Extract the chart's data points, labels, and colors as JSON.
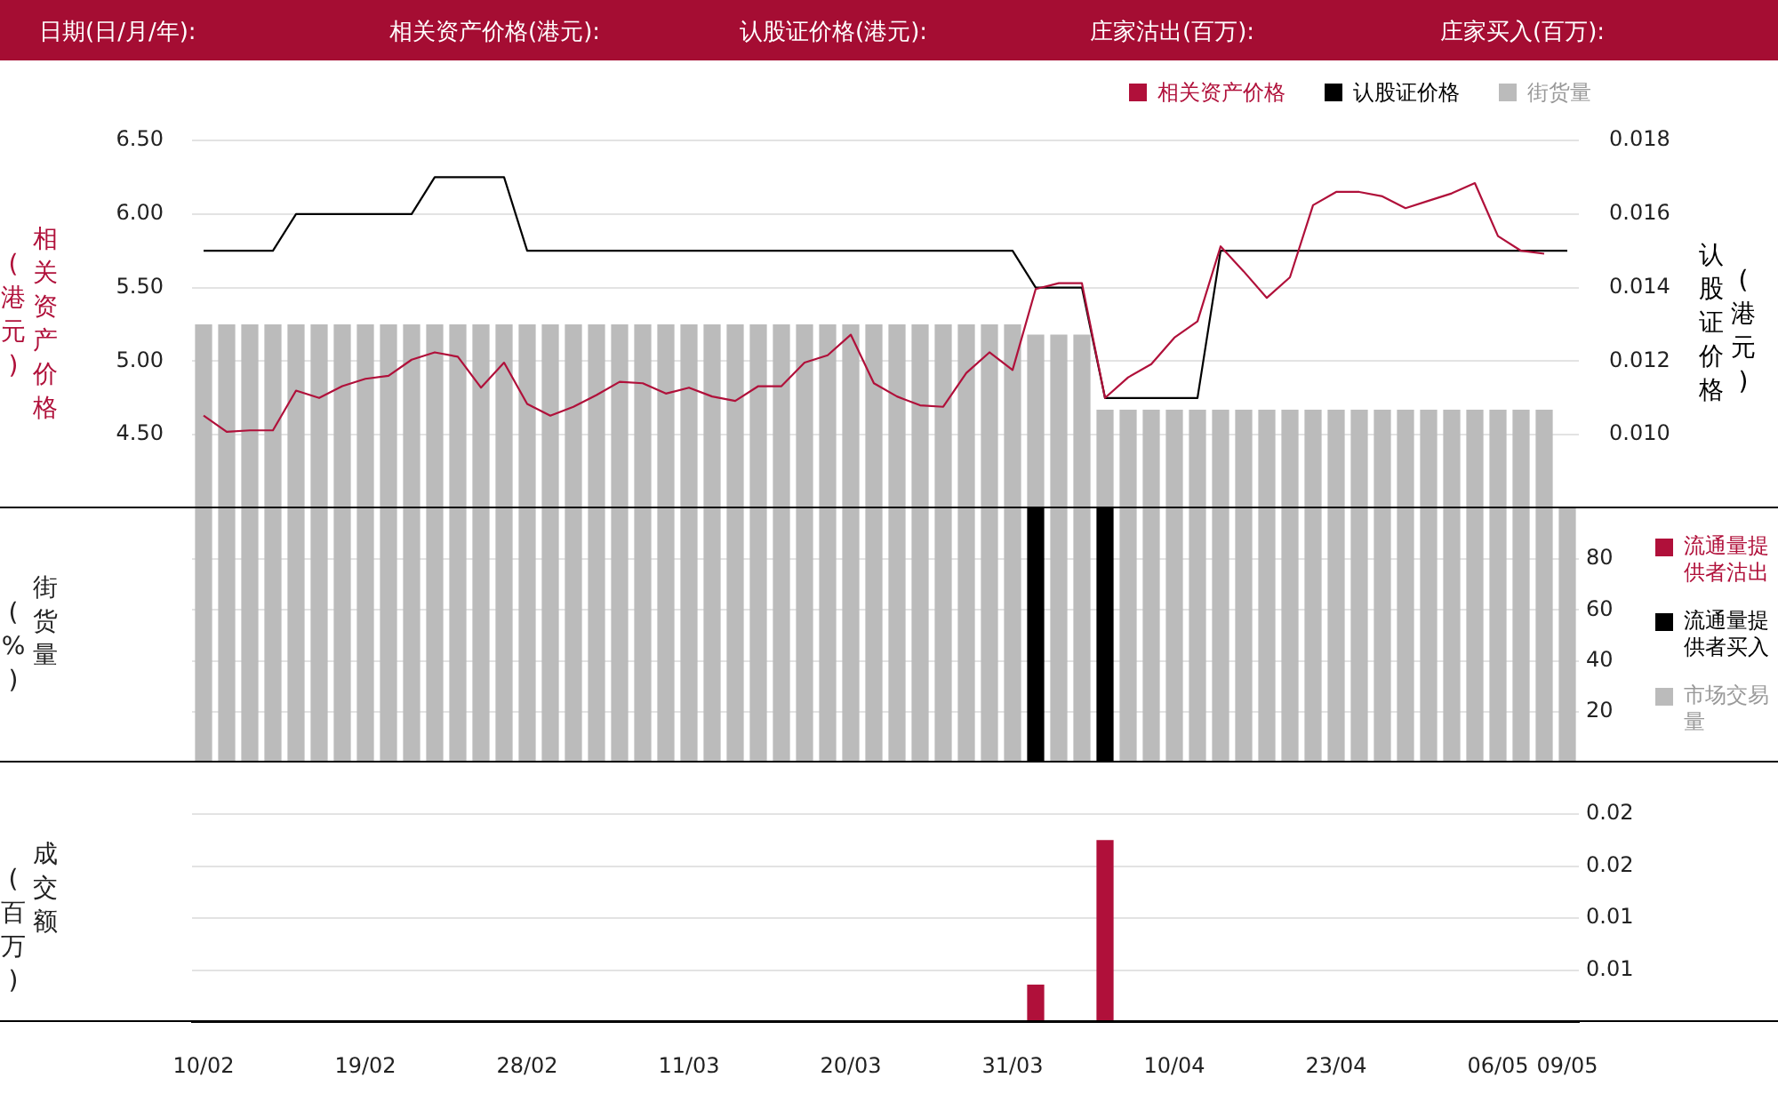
{
  "chart_data": [
    {
      "type": "line",
      "annotations": [
        "日期(日/月/年):",
        "相关资产价格(港元):",
        "认股证价格(港元):",
        "庄家沽出(百万):",
        "庄家买入(百万):"
      ],
      "categories": [
        null,
        null,
        null,
        null,
        null,
        null,
        null,
        null,
        null,
        null,
        null,
        null,
        null,
        null,
        null,
        null,
        null,
        null,
        null,
        null,
        null,
        null,
        null,
        null,
        null,
        null,
        null,
        null,
        null,
        null,
        null,
        null,
        null,
        null,
        null,
        null,
        null,
        null,
        null,
        null,
        null,
        null,
        null,
        null,
        null,
        null,
        null,
        null,
        null,
        null,
        null,
        null,
        null,
        null,
        null,
        null,
        null,
        null,
        null,
        null
      ],
      "series": [
        {
          "name": "相关资产价格",
          "color": "#b0103a",
          "values": [
            4.63,
            4.52,
            4.53,
            4.53,
            4.8,
            4.75,
            4.83,
            4.88,
            4.9,
            5.01,
            5.06,
            5.03,
            4.82,
            4.99,
            4.71,
            4.63,
            4.69,
            4.77,
            4.86,
            4.85,
            4.78,
            4.82,
            4.76,
            4.73,
            4.83,
            4.83,
            4.99,
            5.04,
            5.18,
            4.85,
            4.76,
            4.7,
            4.69,
            4.92,
            5.06,
            4.94,
            5.49,
            5.53,
            5.53,
            4.75,
            4.89,
            4.98,
            5.16,
            5.27,
            5.78,
            5.61,
            5.43,
            5.57,
            6.06,
            6.15,
            6.15,
            6.12,
            6.04,
            6.09,
            6.14,
            6.21,
            5.85,
            5.75,
            5.73,
            null
          ]
        },
        {
          "name": "认股证价格",
          "color": "#000000",
          "axis": "y2",
          "values": [
            0.015,
            0.015,
            0.015,
            0.015,
            0.016,
            0.016,
            0.016,
            0.016,
            0.016,
            0.016,
            0.017,
            0.017,
            0.017,
            0.017,
            0.015,
            0.015,
            0.015,
            0.015,
            0.015,
            0.015,
            0.015,
            0.015,
            0.015,
            0.015,
            0.015,
            0.015,
            0.015,
            0.015,
            0.015,
            0.015,
            0.015,
            0.015,
            0.015,
            0.015,
            0.015,
            0.015,
            0.014,
            0.014,
            0.014,
            0.011,
            0.011,
            0.011,
            0.011,
            0.011,
            0.015,
            0.015,
            0.015,
            0.015,
            0.015,
            0.015,
            0.015,
            0.015,
            0.015,
            0.015,
            0.015,
            0.015,
            0.015,
            0.015,
            0.015,
            0.015
          ]
        },
        {
          "name": "街货量",
          "type": "bar",
          "color": "#bbbbbb",
          "values": [
            5.25,
            5.25,
            5.25,
            5.25,
            5.25,
            5.25,
            5.25,
            5.25,
            5.25,
            5.25,
            5.25,
            5.25,
            5.25,
            5.25,
            5.25,
            5.25,
            5.25,
            5.25,
            5.25,
            5.25,
            5.25,
            5.25,
            5.25,
            5.25,
            5.25,
            5.25,
            5.25,
            5.25,
            5.25,
            5.25,
            5.25,
            5.25,
            5.25,
            5.25,
            5.25,
            5.25,
            5.18,
            5.18,
            5.18,
            4.67,
            4.67,
            4.67,
            4.67,
            4.67,
            4.67,
            4.67,
            4.67,
            4.67,
            4.67,
            4.67,
            4.67,
            4.67,
            4.67,
            4.67,
            4.67,
            4.67,
            4.67,
            4.67,
            4.67,
            null
          ]
        }
      ],
      "ylabel": "相关资产价格(港元)",
      "y2label": "认股证价格(港元)",
      "ylim": [
        4.0,
        6.5
      ],
      "yticks": [
        {
          "value": 4.5,
          "label": "4.50"
        },
        {
          "value": 5.0,
          "label": "5.00"
        },
        {
          "value": 5.5,
          "label": "5.50"
        },
        {
          "value": 6.0,
          "label": "6.00"
        },
        {
          "value": 6.5,
          "label": "6.50"
        }
      ],
      "y2lim": [
        0.008,
        0.018
      ],
      "y2ticks": [
        {
          "value": 0.01,
          "label": "0.010"
        },
        {
          "value": 0.012,
          "label": "0.012"
        },
        {
          "value": 0.014,
          "label": "0.014"
        },
        {
          "value": 0.016,
          "label": "0.016"
        },
        {
          "value": 0.018,
          "label": "0.018"
        }
      ],
      "legend": "top right",
      "grid": "y",
      "tick_labels": "y",
      "marker": "none"
    },
    {
      "type": "bar",
      "categories": [
        null,
        null,
        null,
        null,
        null,
        null,
        null,
        null,
        null,
        null,
        null,
        null,
        null,
        null,
        null,
        null,
        null,
        null,
        null,
        null,
        null,
        null,
        null,
        null,
        null,
        null,
        null,
        null,
        null,
        null,
        null,
        null,
        null,
        null,
        null,
        null,
        null,
        null,
        null,
        null,
        null,
        null,
        null,
        null,
        null,
        null,
        null,
        null,
        null,
        null,
        null,
        null,
        null,
        null,
        null,
        null,
        null,
        null,
        null,
        null
      ],
      "series": [
        {
          "name": "流通量提供者沽出",
          "color": "#b0103a",
          "values": [
            null,
            null,
            null,
            null,
            null,
            null,
            null,
            null,
            null,
            null,
            null,
            null,
            null,
            null,
            null,
            null,
            null,
            null,
            null,
            null,
            null,
            null,
            null,
            null,
            null,
            null,
            null,
            null,
            null,
            null,
            null,
            null,
            null,
            null,
            null,
            null,
            null,
            null,
            null,
            null,
            null,
            null,
            null,
            null,
            null,
            null,
            null,
            null,
            null,
            null,
            null,
            null,
            null,
            null,
            null,
            null,
            null,
            null,
            null,
            null
          ]
        },
        {
          "name": "流通量提供者买入",
          "color": "#000000",
          "values": [
            null,
            null,
            null,
            null,
            null,
            null,
            null,
            null,
            null,
            null,
            null,
            null,
            null,
            null,
            null,
            null,
            null,
            null,
            null,
            null,
            null,
            null,
            null,
            null,
            null,
            null,
            null,
            null,
            null,
            null,
            null,
            null,
            null,
            null,
            null,
            null,
            100,
            null,
            null,
            100,
            null,
            null,
            null,
            null,
            null,
            null,
            null,
            null,
            null,
            null,
            null,
            null,
            null,
            null,
            null,
            null,
            null,
            null,
            null,
            null
          ]
        },
        {
          "name": "市场交易量",
          "color": "#bbbbbb",
          "values": [
            100,
            100,
            100,
            100,
            100,
            100,
            100,
            100,
            100,
            100,
            100,
            100,
            100,
            100,
            100,
            100,
            100,
            100,
            100,
            100,
            100,
            100,
            100,
            100,
            100,
            100,
            100,
            100,
            100,
            100,
            100,
            100,
            100,
            100,
            100,
            100,
            null,
            100,
            100,
            null,
            100,
            100,
            100,
            100,
            100,
            100,
            100,
            100,
            100,
            100,
            100,
            100,
            100,
            100,
            100,
            100,
            100,
            100,
            100,
            100
          ]
        }
      ],
      "ylabel": "街货量(%)",
      "ylim": [
        0,
        100
      ],
      "yticks": [
        20,
        40,
        60,
        80
      ],
      "legend": "right",
      "grid": "y",
      "tick_labels": "y"
    },
    {
      "type": "bar",
      "categories": [
        "10/02",
        null,
        null,
        null,
        null,
        null,
        null,
        "19/02",
        null,
        null,
        null,
        null,
        null,
        null,
        "28/02",
        null,
        null,
        null,
        null,
        null,
        null,
        "11/03",
        null,
        null,
        null,
        null,
        null,
        null,
        "20/03",
        null,
        null,
        null,
        null,
        null,
        null,
        "31/03",
        null,
        null,
        null,
        null,
        null,
        null,
        "10/04",
        null,
        null,
        null,
        null,
        null,
        null,
        "23/04",
        null,
        null,
        null,
        null,
        null,
        null,
        "06/05",
        null,
        null,
        "09/05"
      ],
      "series": [
        {
          "color": "#b0103a",
          "values": [
            null,
            null,
            null,
            null,
            null,
            null,
            null,
            null,
            null,
            null,
            null,
            null,
            null,
            null,
            null,
            null,
            null,
            null,
            null,
            null,
            null,
            null,
            null,
            null,
            null,
            null,
            null,
            null,
            null,
            null,
            null,
            null,
            null,
            null,
            null,
            null,
            0.0036,
            null,
            null,
            0.0175,
            null,
            null,
            null,
            null,
            null,
            null,
            null,
            null,
            null,
            null,
            null,
            null,
            null,
            null,
            null,
            null,
            null,
            null,
            null,
            null
          ]
        }
      ],
      "ylabel": "成交额(百万)",
      "ylim": [
        0,
        0.02
      ],
      "yticks": [
        {
          "value": 0.005,
          "label": "0.01"
        },
        {
          "value": 0.01,
          "label": "0.01"
        },
        {
          "value": 0.015,
          "label": "0.02"
        },
        {
          "value": 0.02,
          "label": "0.02"
        }
      ],
      "grid": "y"
    }
  ]
}
